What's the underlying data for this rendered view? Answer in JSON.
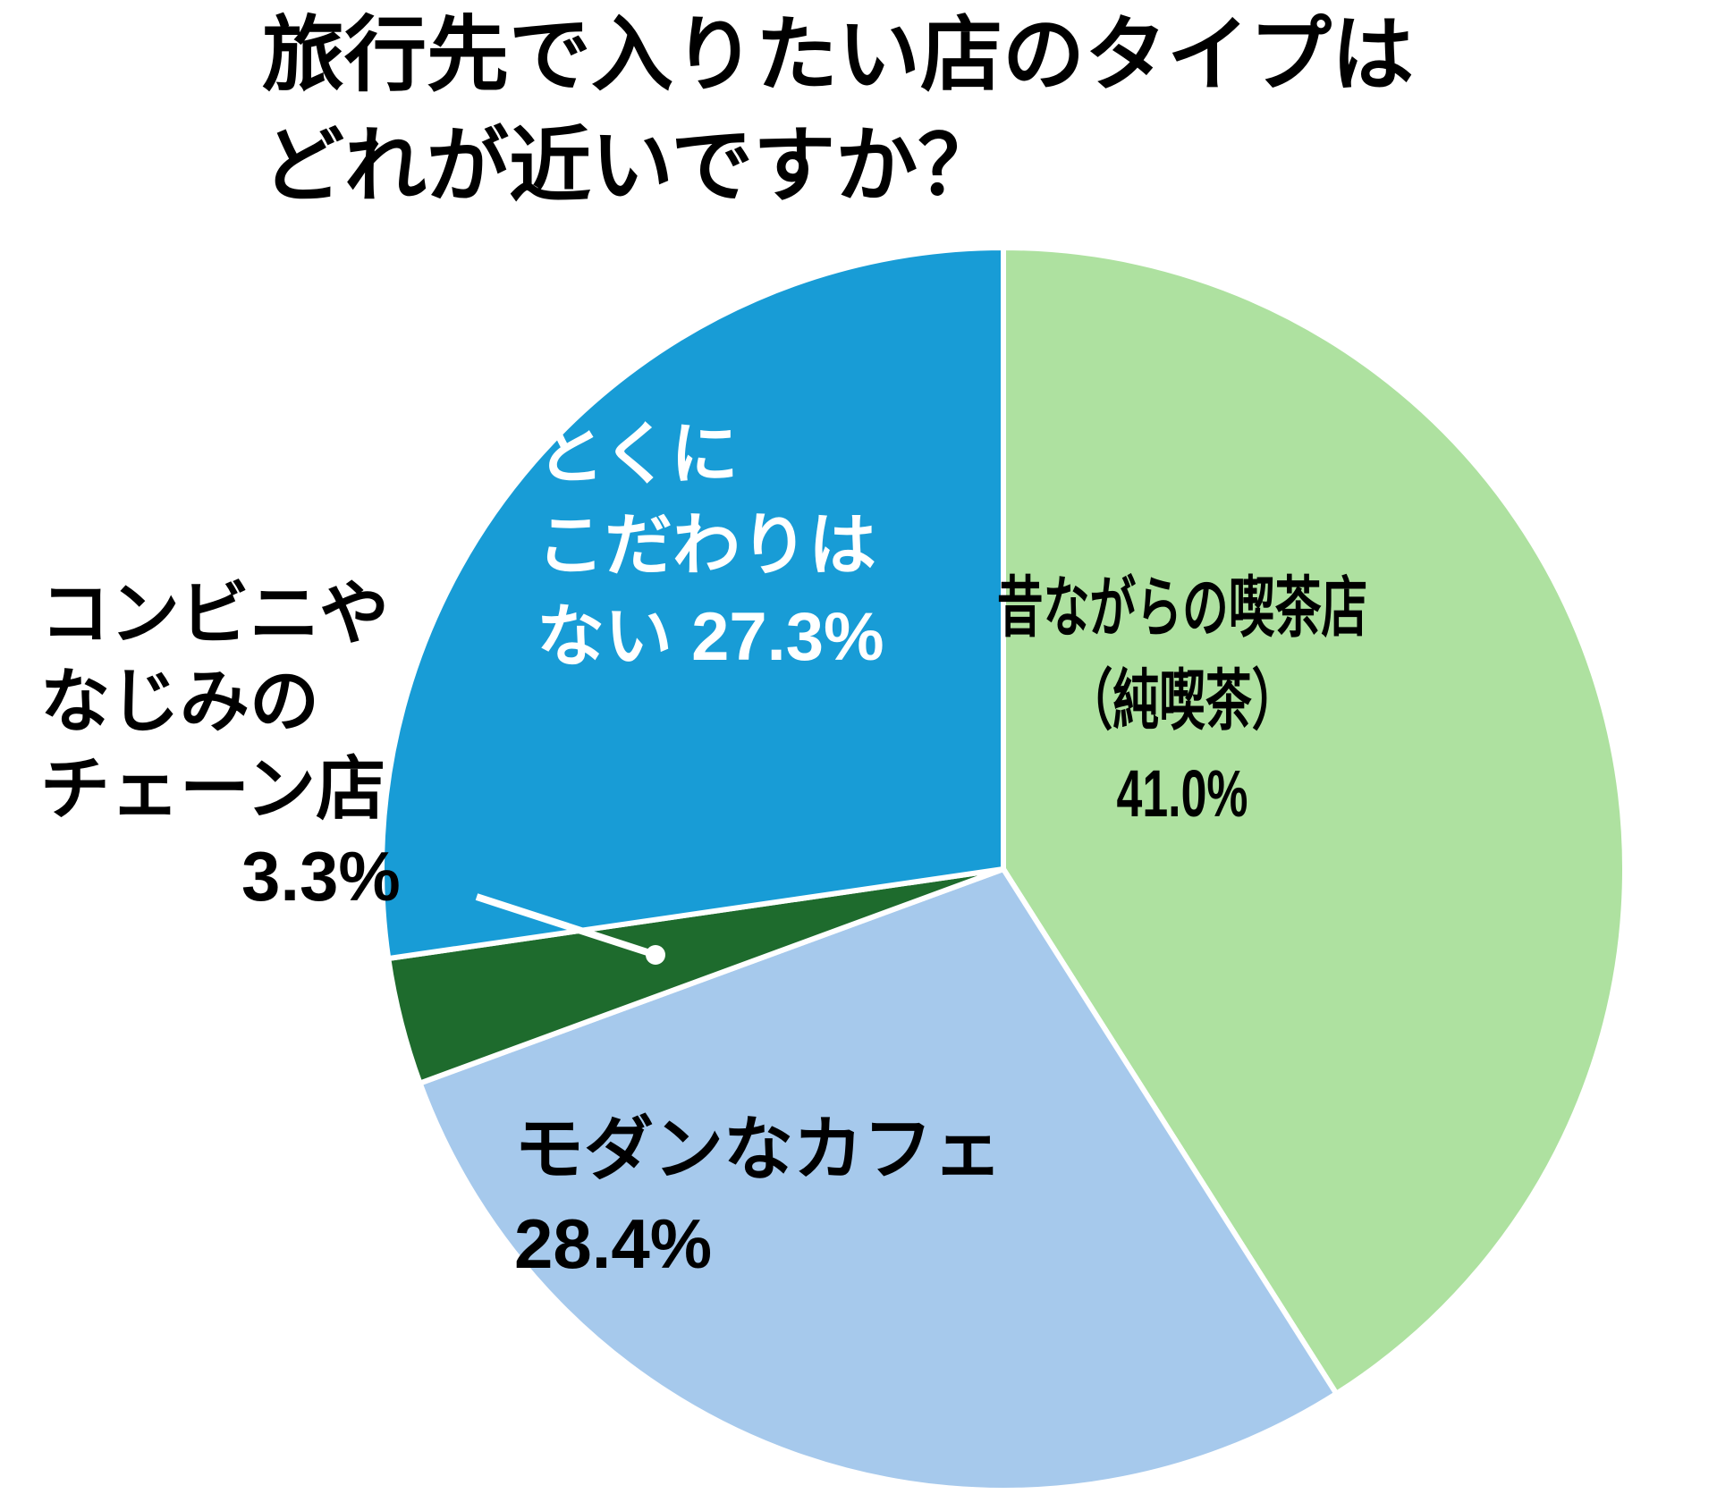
{
  "title": {
    "line1": "旅行先で入りたい店のタイプは",
    "line2": "どれが近いですか？"
  },
  "chart_data": {
    "type": "pie",
    "title": "旅行先で入りたい店のタイプはどれが近いですか？",
    "unit": "%",
    "direction": "clockwise",
    "start_angle_deg": 0,
    "legend": "none",
    "slices": [
      {
        "label": "昔ながらの喫茶店（純喫茶）",
        "value": 41.0,
        "color": "#AEE1A0",
        "text_color": "#000000"
      },
      {
        "label": "モダンなカフェ",
        "value": 28.4,
        "color": "#A6C9EC",
        "text_color": "#000000"
      },
      {
        "label": "コンビニやなじみのチェーン店",
        "value": 3.3,
        "color": "#1E6B2D",
        "text_color": "#000000"
      },
      {
        "label": "とくにこだわりはない",
        "value": 27.3,
        "color": "#189CD6",
        "text_color": "#FFFFFF"
      }
    ]
  },
  "labels": {
    "kissaten": {
      "line1": "昔ながらの喫茶店",
      "line2": "（純喫茶）",
      "line3": "41.0%"
    },
    "modern_cafe": {
      "line1": "モダンなカフェ",
      "line2": "28.4%"
    },
    "conbini": {
      "line1": "コンビニや",
      "line2": "なじみの",
      "line3": "チェーン店",
      "line4": "3.3%"
    },
    "no_preference": {
      "line1": "とくに",
      "line2": "こだわりは",
      "line3": "ない 27.3%"
    }
  }
}
